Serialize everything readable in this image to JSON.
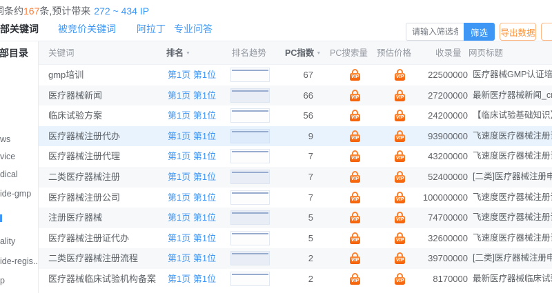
{
  "summary": {
    "prefix": "词条约",
    "highlight_count": "167",
    "middle": "条,预计带来",
    "traffic_range": "272 ~ 434 IP"
  },
  "tabs": {
    "items": [
      {
        "label": "全部关键词",
        "active": true
      },
      {
        "label": "被竞价关键词",
        "active": false
      },
      {
        "label": "阿拉丁",
        "active": false
      },
      {
        "label": "专业问答",
        "active": false
      }
    ]
  },
  "toolbar": {
    "filter_placeholder": "请输入筛选条件",
    "filter_button": "筛选",
    "export_button": "导出数据",
    "submit_button": "提交"
  },
  "sidebar": {
    "title": "全部目录",
    "items": [
      "ws",
      "vice",
      "dical",
      "ide-gmp",
      "",
      "ality",
      "ide-regis...",
      "p"
    ]
  },
  "table": {
    "headers": {
      "keyword": "关键词",
      "rank": "排名",
      "trend": "排名趋势",
      "pc_index": "PC指数",
      "pc_search": "PC搜索量",
      "price": "预估价格",
      "collection": "收录量",
      "title": "网页标题"
    },
    "rows": [
      {
        "keyword": "gmp培训",
        "rank": "第1页 第1位",
        "pc_index": "67",
        "collection": "22500000",
        "title": "医疗器械GMP认证培训_医"
      },
      {
        "keyword": "医疗器械新闻",
        "rank": "第1页 第1位",
        "pc_index": "66",
        "collection": "27200000",
        "title": "最新医疗器械新闻_cro行业"
      },
      {
        "keyword": "临床试验方案",
        "rank": "第1页 第1位",
        "pc_index": "56",
        "collection": "24200000",
        "title": "【临床试验基础知识】临床"
      },
      {
        "keyword": "医疗器械注册代办",
        "rank": "第1页 第1位",
        "pc_index": "9",
        "collection": "93900000",
        "title": "飞速度医疗器械注册证代办"
      },
      {
        "keyword": "医疗器械注册代理",
        "rank": "第1页 第1位",
        "pc_index": "7",
        "collection": "43200000",
        "title": "飞速度医疗器械注册证代办"
      },
      {
        "keyword": "二类医疗器械注册",
        "rank": "第1页 第1位",
        "pc_index": "7",
        "collection": "52400000",
        "title": "[二类]医疗器械注册申报资"
      },
      {
        "keyword": "医疗器械注册公司",
        "rank": "第1页 第1位",
        "pc_index": "7",
        "collection": "100000000",
        "title": "飞速度医疗器械注册证代办"
      },
      {
        "keyword": "注册医疗器械",
        "rank": "第1页 第1位",
        "pc_index": "5",
        "collection": "74700000",
        "title": "飞速度医疗器械注册证代办"
      },
      {
        "keyword": "医疗器械注册证代办",
        "rank": "第1页 第1位",
        "pc_index": "5",
        "collection": "32600000",
        "title": "飞速度医疗器械注册证代办"
      },
      {
        "keyword": "二类医疗器械注册流程",
        "rank": "第1页 第1位",
        "pc_index": "2",
        "collection": "39700000",
        "title": "[二类]医疗器械注册申报资"
      },
      {
        "keyword": "医疗器械临床试验机构备案",
        "rank": "第1页 第1位",
        "pc_index": "2",
        "collection": "8170000",
        "title": "最新医疗器械临床试验机构"
      }
    ]
  },
  "icons": {
    "vip_label": "VIP",
    "sort_caret": "▼"
  },
  "colors": {
    "accent_blue": "#3e97f5",
    "highlight_orange": "#ff7a30",
    "vip_orange": "#f4650a",
    "stripe_bg": "#f6f8fa",
    "hover_bg": "#e9f3fd"
  }
}
